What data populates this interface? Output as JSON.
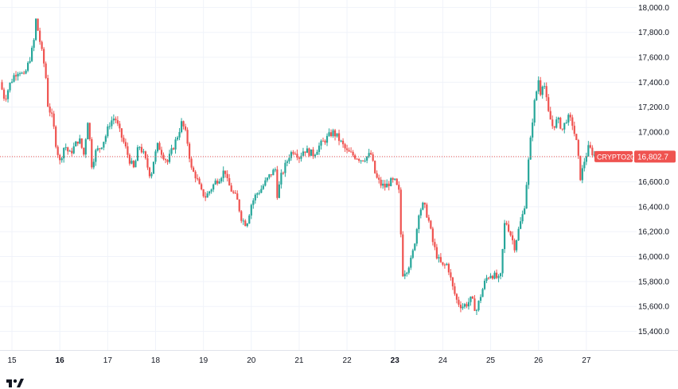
{
  "chart_data": {
    "type": "candlestick",
    "symbol": "CRYPTO20",
    "last_price": 16802.7,
    "last_price_label": "16,802.7",
    "up_color": "#26a69a",
    "down_color": "#ef5350",
    "y_ticks": [
      "18,000.0",
      "17,800.0",
      "17,600.0",
      "17,400.0",
      "17,200.0",
      "17,000.0",
      "16,800.0",
      "16,600.0",
      "16,400.0",
      "16,200.0",
      "16,000.0",
      "15,800.0",
      "15,600.0",
      "15,400.0"
    ],
    "y_tick_values": [
      18000,
      17800,
      17600,
      17400,
      17200,
      17000,
      16800,
      16600,
      16400,
      16200,
      16000,
      15800,
      15600,
      15400
    ],
    "x_ticks": [
      {
        "label": "15",
        "bold": false
      },
      {
        "label": "16",
        "bold": true
      },
      {
        "label": "17",
        "bold": false
      },
      {
        "label": "18",
        "bold": false
      },
      {
        "label": "19",
        "bold": false
      },
      {
        "label": "20",
        "bold": false
      },
      {
        "label": "21",
        "bold": false
      },
      {
        "label": "22",
        "bold": false
      },
      {
        "label": "23",
        "bold": true
      },
      {
        "label": "24",
        "bold": false
      },
      {
        "label": "25",
        "bold": false
      },
      {
        "label": "26",
        "bold": false
      },
      {
        "label": "27",
        "bold": false
      }
    ],
    "x_tick_values": [
      15,
      16,
      17,
      18,
      19,
      20,
      21,
      22,
      23,
      24,
      25,
      26,
      27
    ],
    "x_range": [
      14.75,
      28.05
    ],
    "y_range": [
      15250,
      18060
    ],
    "grid": true,
    "price_path": [
      [
        14.75,
        17400
      ],
      [
        14.85,
        17260
      ],
      [
        14.95,
        17380
      ],
      [
        15.05,
        17460
      ],
      [
        15.15,
        17500
      ],
      [
        15.25,
        17440
      ],
      [
        15.35,
        17560
      ],
      [
        15.45,
        17700
      ],
      [
        15.5,
        17900
      ],
      [
        15.55,
        17800
      ],
      [
        15.62,
        17650
      ],
      [
        15.7,
        17480
      ],
      [
        15.75,
        17220
      ],
      [
        15.85,
        17100
      ],
      [
        15.92,
        16900
      ],
      [
        16.0,
        16760
      ],
      [
        16.1,
        16900
      ],
      [
        16.2,
        16820
      ],
      [
        16.3,
        16880
      ],
      [
        16.4,
        16950
      ],
      [
        16.5,
        16820
      ],
      [
        16.6,
        17150
      ],
      [
        16.65,
        16720
      ],
      [
        16.75,
        16840
      ],
      [
        16.85,
        16880
      ],
      [
        16.95,
        16960
      ],
      [
        17.05,
        17080
      ],
      [
        17.15,
        17120
      ],
      [
        17.25,
        17000
      ],
      [
        17.35,
        16900
      ],
      [
        17.45,
        16780
      ],
      [
        17.55,
        16700
      ],
      [
        17.65,
        16900
      ],
      [
        17.75,
        16820
      ],
      [
        17.9,
        16640
      ],
      [
        17.95,
        16760
      ],
      [
        18.05,
        16900
      ],
      [
        18.15,
        16820
      ],
      [
        18.25,
        16760
      ],
      [
        18.35,
        16860
      ],
      [
        18.45,
        16960
      ],
      [
        18.55,
        17080
      ],
      [
        18.65,
        16960
      ],
      [
        18.75,
        16700
      ],
      [
        18.85,
        16640
      ],
      [
        18.95,
        16520
      ],
      [
        19.05,
        16480
      ],
      [
        19.15,
        16540
      ],
      [
        19.25,
        16600
      ],
      [
        19.35,
        16640
      ],
      [
        19.45,
        16700
      ],
      [
        19.5,
        16600
      ],
      [
        19.6,
        16520
      ],
      [
        19.7,
        16460
      ],
      [
        19.8,
        16300
      ],
      [
        19.9,
        16260
      ],
      [
        20.0,
        16420
      ],
      [
        20.1,
        16500
      ],
      [
        20.2,
        16540
      ],
      [
        20.3,
        16600
      ],
      [
        20.4,
        16660
      ],
      [
        20.5,
        16700
      ],
      [
        20.55,
        16460
      ],
      [
        20.6,
        16620
      ],
      [
        20.7,
        16720
      ],
      [
        20.8,
        16820
      ],
      [
        20.9,
        16860
      ],
      [
        21.0,
        16800
      ],
      [
        21.1,
        16860
      ],
      [
        21.2,
        16840
      ],
      [
        21.3,
        16820
      ],
      [
        21.4,
        16880
      ],
      [
        21.5,
        16920
      ],
      [
        21.6,
        16960
      ],
      [
        21.7,
        17000
      ],
      [
        21.8,
        16960
      ],
      [
        21.9,
        16900
      ],
      [
        22.0,
        16840
      ],
      [
        22.1,
        16820
      ],
      [
        22.2,
        16800
      ],
      [
        22.3,
        16780
      ],
      [
        22.4,
        16800
      ],
      [
        22.5,
        16820
      ],
      [
        22.6,
        16640
      ],
      [
        22.7,
        16580
      ],
      [
        22.8,
        16560
      ],
      [
        22.9,
        16600
      ],
      [
        23.0,
        16600
      ],
      [
        23.1,
        16500
      ],
      [
        23.15,
        15860
      ],
      [
        23.25,
        15900
      ],
      [
        23.35,
        15980
      ],
      [
        23.45,
        16200
      ],
      [
        23.5,
        16360
      ],
      [
        23.6,
        16420
      ],
      [
        23.7,
        16300
      ],
      [
        23.8,
        16100
      ],
      [
        23.9,
        15980
      ],
      [
        24.0,
        15920
      ],
      [
        24.1,
        15940
      ],
      [
        24.2,
        15760
      ],
      [
        24.3,
        15640
      ],
      [
        24.4,
        15600
      ],
      [
        24.5,
        15620
      ],
      [
        24.6,
        15660
      ],
      [
        24.7,
        15560
      ],
      [
        24.8,
        15700
      ],
      [
        24.9,
        15820
      ],
      [
        25.0,
        15860
      ],
      [
        25.1,
        15840
      ],
      [
        25.2,
        15800
      ],
      [
        25.3,
        16300
      ],
      [
        25.4,
        16200
      ],
      [
        25.5,
        16080
      ],
      [
        25.6,
        16240
      ],
      [
        25.7,
        16380
      ],
      [
        25.8,
        16800
      ],
      [
        25.9,
        17200
      ],
      [
        26.0,
        17420
      ],
      [
        26.05,
        17300
      ],
      [
        26.1,
        17440
      ],
      [
        26.2,
        17160
      ],
      [
        26.3,
        17040
      ],
      [
        26.4,
        17100
      ],
      [
        26.5,
        17020
      ],
      [
        26.6,
        17120
      ],
      [
        26.7,
        17080
      ],
      [
        26.8,
        16900
      ],
      [
        26.88,
        16620
      ],
      [
        26.95,
        16760
      ],
      [
        27.05,
        16880
      ],
      [
        27.15,
        16820
      ],
      [
        27.2,
        16802.7
      ]
    ]
  }
}
